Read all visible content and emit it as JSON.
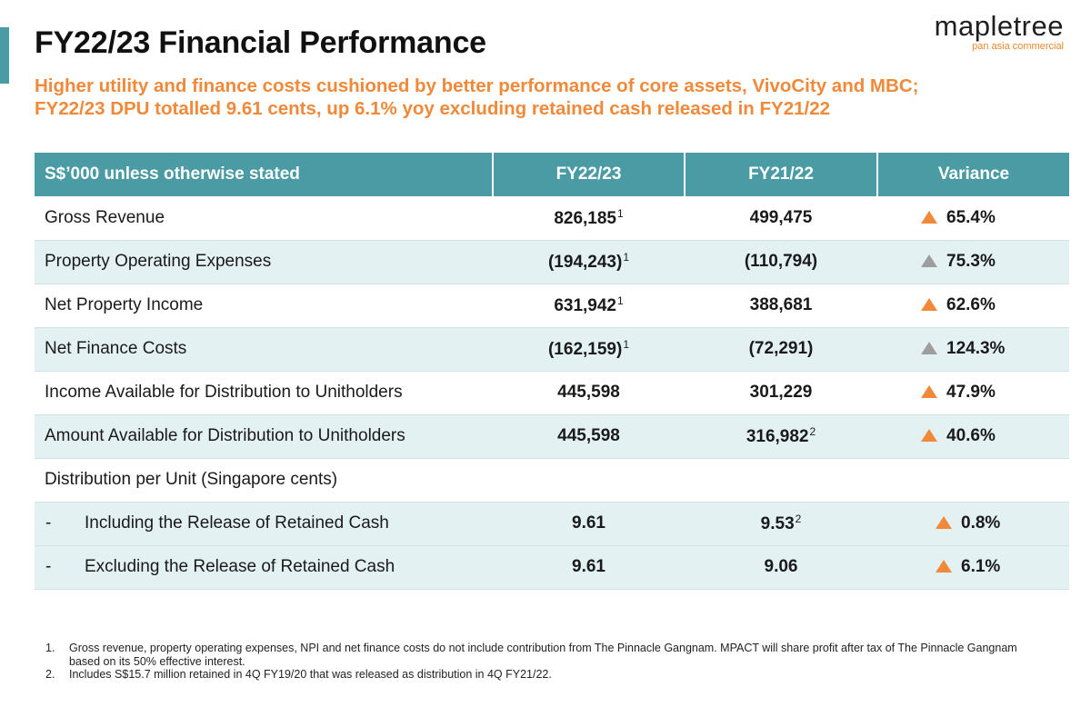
{
  "header": {
    "title": "FY22/23 Financial Performance",
    "subtitle_line1": "Higher utility and finance costs cushioned by better performance of core assets, VivoCity and MBC;",
    "subtitle_line2": "FY22/23 DPU totalled 9.61 cents, up 6.1% yoy excluding retained cash released in FY21/22"
  },
  "logo": {
    "wordmark": "mapletree",
    "tagline": "pan asia commercial"
  },
  "table": {
    "headers": [
      "S$’000 unless otherwise stated",
      "FY22/23",
      "FY21/22",
      "Variance"
    ],
    "rows": [
      {
        "label": "Gross Revenue",
        "fy2223": "826,185",
        "fy2223_note": "1",
        "fy2122": "499,475",
        "fy2122_note": "",
        "variance": "65.4%",
        "arrow": "orange"
      },
      {
        "label": "Property Operating Expenses",
        "fy2223": "(194,243)",
        "fy2223_note": "1",
        "fy2122": "(110,794)",
        "fy2122_note": "",
        "variance": "75.3%",
        "arrow": "grey"
      },
      {
        "label": "Net Property Income",
        "fy2223": "631,942",
        "fy2223_note": "1",
        "fy2122": "388,681",
        "fy2122_note": "",
        "variance": "62.6%",
        "arrow": "orange"
      },
      {
        "label": "Net Finance Costs",
        "fy2223": "(162,159)",
        "fy2223_note": "1",
        "fy2122": "(72,291)",
        "fy2122_note": "",
        "variance": "124.3%",
        "arrow": "grey"
      },
      {
        "label": "Income Available for Distribution to Unitholders",
        "fy2223": "445,598",
        "fy2223_note": "",
        "fy2122": "301,229",
        "fy2122_note": "",
        "variance": "47.9%",
        "arrow": "orange"
      },
      {
        "label": "Amount Available for Distribution to Unitholders",
        "fy2223": "445,598",
        "fy2223_note": "",
        "fy2122": "316,982",
        "fy2122_note": "2",
        "variance": "40.6%",
        "arrow": "orange"
      }
    ],
    "dpu_section_label": "Distribution per Unit (Singapore cents)",
    "dpu_rows": [
      {
        "dash": "-",
        "label": "Including the Release of Retained Cash",
        "fy2223": "9.61",
        "fy2122": "9.53",
        "fy2122_note": "2",
        "variance": "0.8%",
        "arrow": "orange"
      },
      {
        "dash": "-",
        "label": "Excluding the Release of Retained Cash",
        "fy2223": "9.61",
        "fy2122": "9.06",
        "fy2122_note": "",
        "variance": "6.1%",
        "arrow": "orange"
      }
    ]
  },
  "footnotes": [
    {
      "num": "1.",
      "text": "Gross revenue, property operating expenses, NPI and net finance costs do not include contribution from The Pinnacle Gangnam. MPACT will share profit after tax of The Pinnacle Gangnam based on its 50% effective interest."
    },
    {
      "num": "2.",
      "text": "Includes S$15.7 million retained in 4Q FY19/20 that was released as distribution in 4Q FY21/22."
    }
  ],
  "colors": {
    "accent_teal": "#4a9ba3",
    "accent_orange": "#f0893a",
    "row_shade": "#e4f1f3",
    "arrow_grey": "#9e9e9e"
  }
}
